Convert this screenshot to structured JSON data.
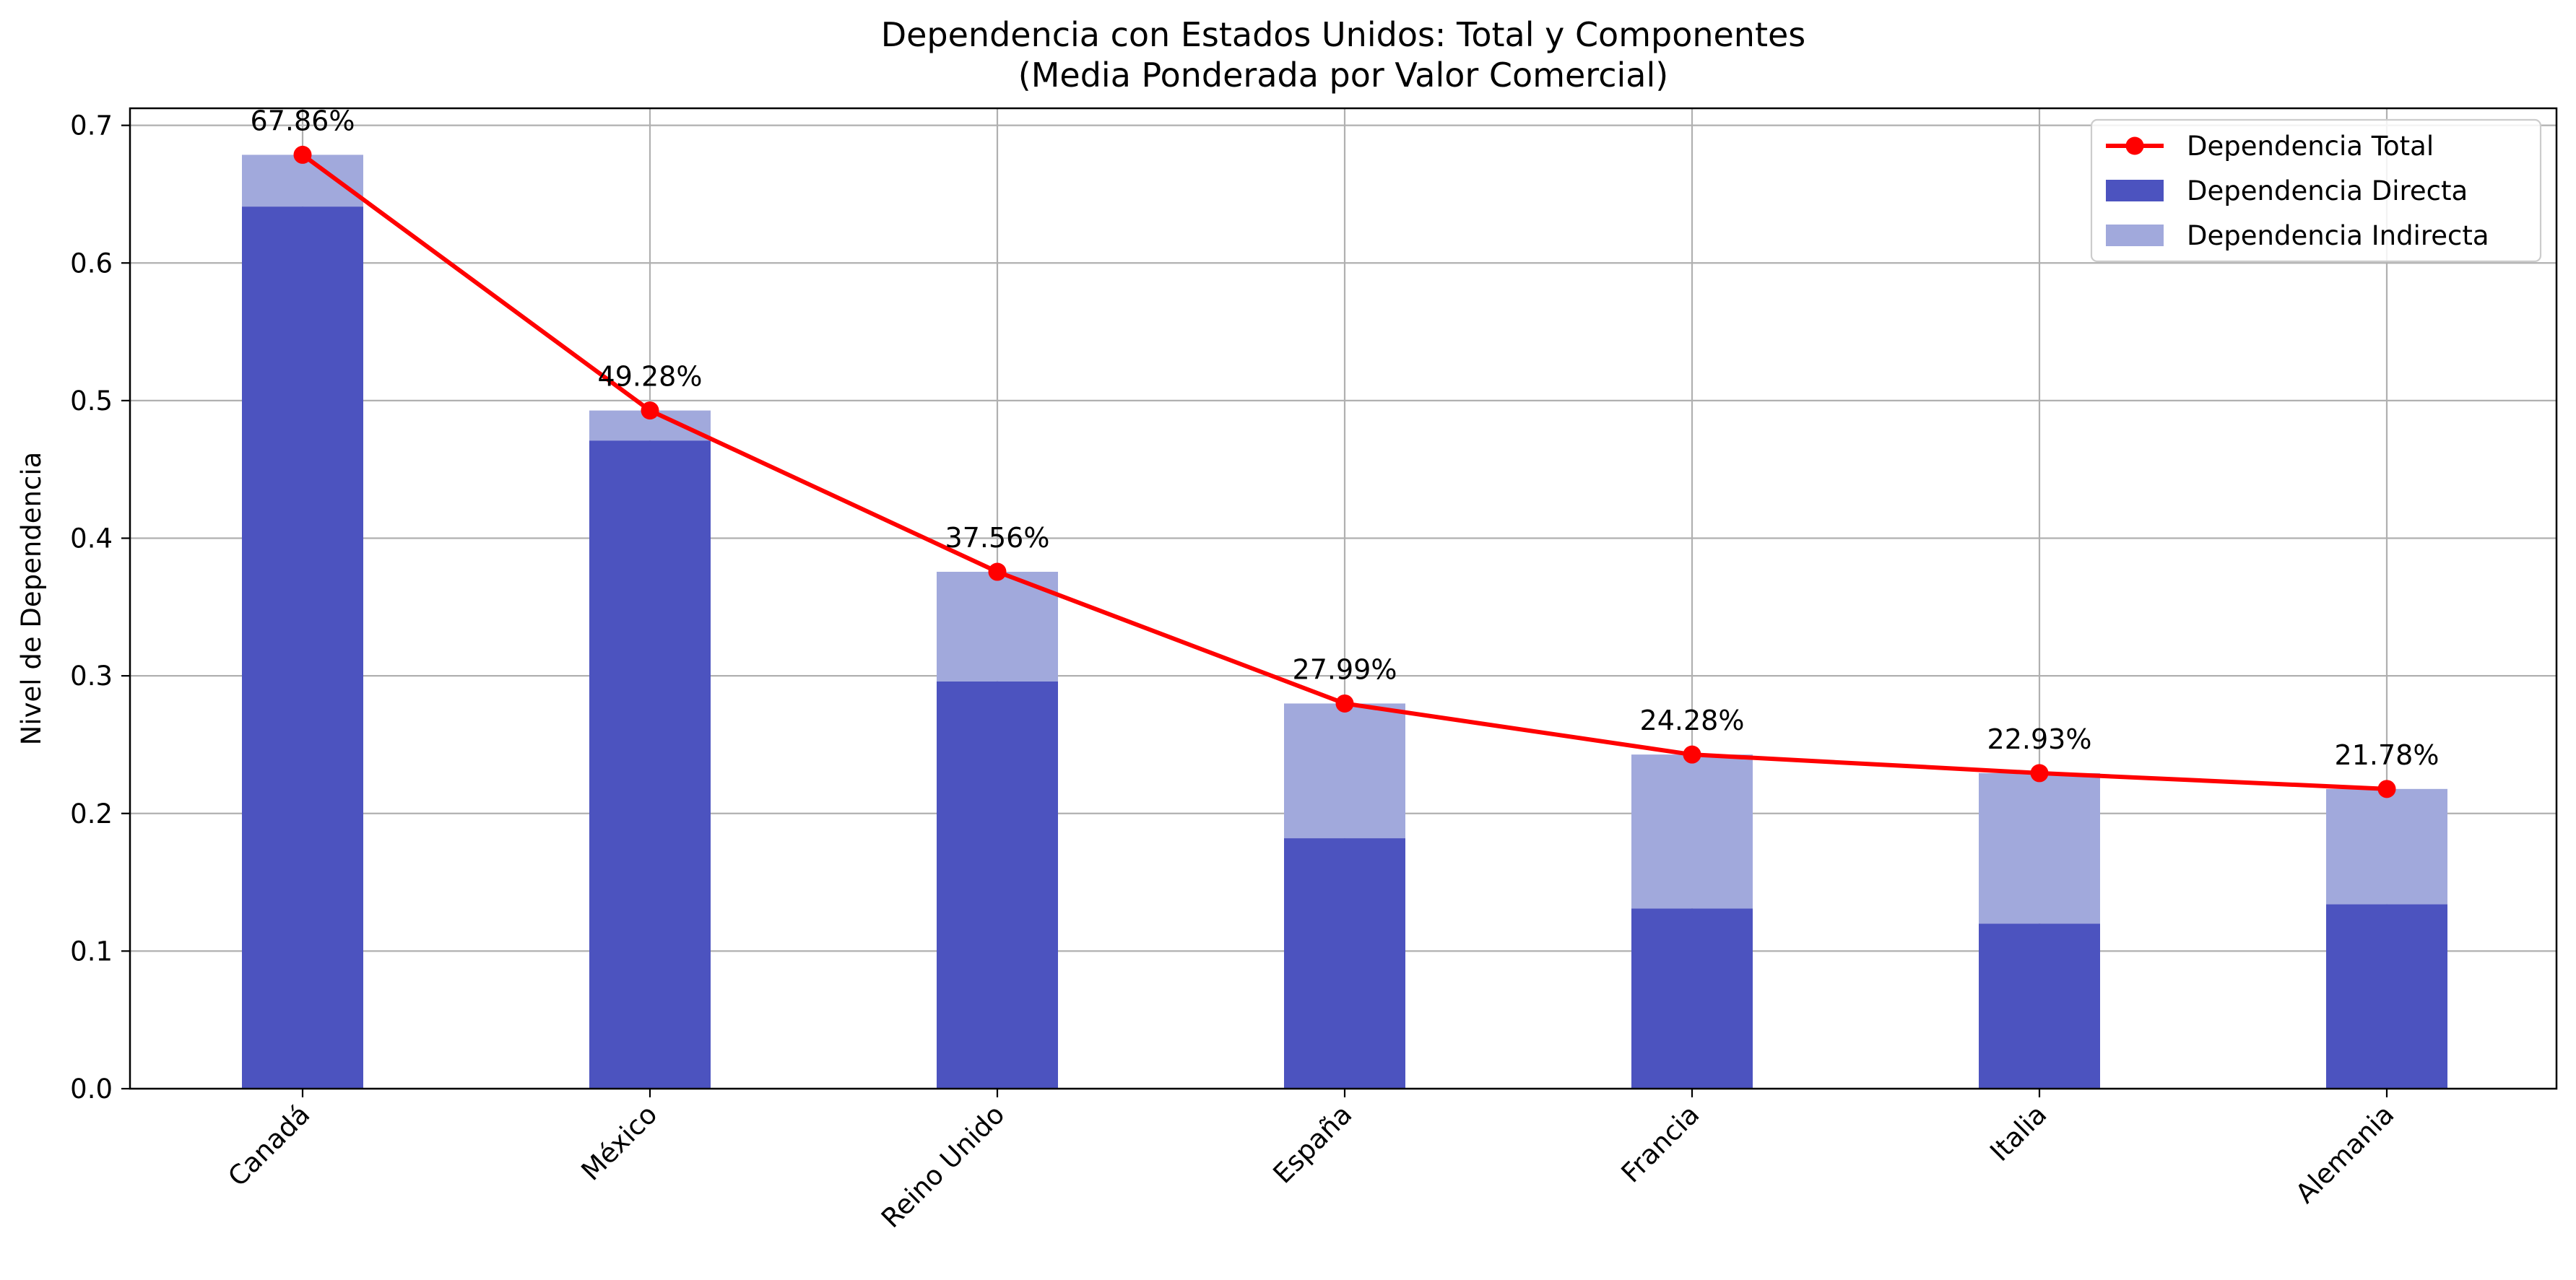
{
  "chart_data": {
    "type": "bar",
    "title": "Dependencia con Estados Unidos: Total y Componentes",
    "subtitle": "(Media Ponderada por Valor Comercial)",
    "xlabel": "",
    "ylabel": "Nivel de Dependencia",
    "ylim": [
      0,
      0.7
    ],
    "yticks": [
      "0.0",
      "0.1",
      "0.2",
      "0.3",
      "0.4",
      "0.5",
      "0.6",
      "0.7"
    ],
    "grid": true,
    "legend_position": "top-right",
    "categories": [
      "Canadá",
      "México",
      "Reino Unido",
      "España",
      "Francia",
      "Italia",
      "Alemania"
    ],
    "series": [
      {
        "name": "Dependencia Total",
        "kind": "line",
        "color": "#ff0000",
        "values": [
          0.6786,
          0.4928,
          0.3756,
          0.2799,
          0.2428,
          0.2293,
          0.2178
        ],
        "labels": [
          "67.86%",
          "49.28%",
          "37.56%",
          "27.99%",
          "24.28%",
          "22.93%",
          "21.78%"
        ]
      },
      {
        "name": "Dependencia Directa",
        "kind": "bar",
        "color": "#4c53bf",
        "values": [
          0.641,
          0.471,
          0.296,
          0.182,
          0.131,
          0.12,
          0.134
        ]
      },
      {
        "name": "Dependencia Indirecta",
        "kind": "bar",
        "color": "#a1a9dc",
        "values": [
          0.0376,
          0.0218,
          0.0796,
          0.0979,
          0.1118,
          0.1093,
          0.0838
        ]
      }
    ]
  }
}
